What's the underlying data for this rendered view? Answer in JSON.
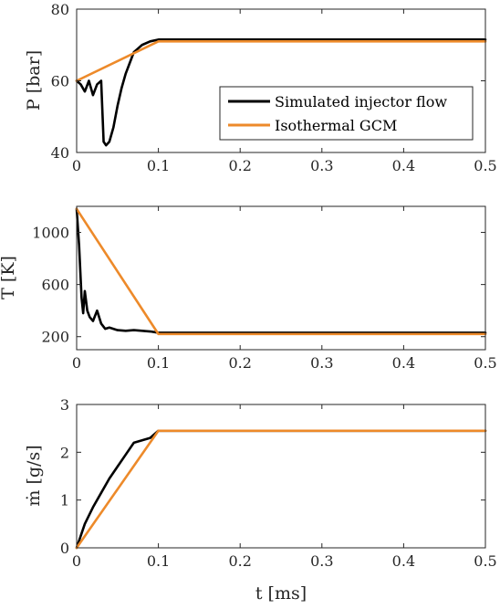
{
  "chart_data": [
    {
      "type": "line",
      "ylabel": "P [bar]",
      "xlim": [
        0,
        0.5
      ],
      "ylim": [
        40,
        80
      ],
      "xticks": [
        "0",
        "0.1",
        "0.2",
        "0.3",
        "0.4",
        "0.5"
      ],
      "yticks": [
        "40",
        "60",
        "80"
      ],
      "legend": {
        "placement": "right-middle",
        "entries": [
          "Simulated injector flow",
          "Isothermal GCM"
        ]
      },
      "series": [
        {
          "name": "Simulated injector flow",
          "color": "#000000",
          "x": [
            0,
            0.005,
            0.01,
            0.015,
            0.02,
            0.025,
            0.03,
            0.033,
            0.036,
            0.04,
            0.045,
            0.05,
            0.055,
            0.06,
            0.065,
            0.07,
            0.075,
            0.08,
            0.09,
            0.1,
            0.2,
            0.3,
            0.4,
            0.5
          ],
          "y": [
            60,
            59,
            57,
            60,
            56,
            59,
            60,
            43,
            42,
            43,
            47,
            53,
            58,
            62,
            65,
            68,
            69,
            70,
            71,
            71.5,
            71.5,
            71.5,
            71.5,
            71.5
          ]
        },
        {
          "name": "Isothermal GCM",
          "color": "#ed8a2a",
          "x": [
            0,
            0.1,
            0.5
          ],
          "y": [
            60,
            71,
            71
          ]
        }
      ]
    },
    {
      "type": "line",
      "ylabel": "T [K]",
      "xlim": [
        0,
        0.5
      ],
      "ylim": [
        100,
        1200
      ],
      "xticks": [
        "0",
        "0.1",
        "0.2",
        "0.3",
        "0.4",
        "0.5"
      ],
      "yticks": [
        "200",
        "600",
        "1000"
      ],
      "series": [
        {
          "name": "Simulated injector flow",
          "color": "#000000",
          "x": [
            0,
            0.003,
            0.006,
            0.008,
            0.01,
            0.013,
            0.016,
            0.02,
            0.025,
            0.03,
            0.035,
            0.04,
            0.05,
            0.06,
            0.07,
            0.08,
            0.09,
            0.1,
            0.2,
            0.3,
            0.4,
            0.5
          ],
          "y": [
            1180,
            900,
            500,
            380,
            550,
            400,
            350,
            320,
            400,
            300,
            260,
            270,
            250,
            245,
            250,
            245,
            240,
            230,
            230,
            230,
            230,
            230
          ]
        },
        {
          "name": "Isothermal GCM",
          "color": "#ed8a2a",
          "x": [
            0,
            0.1,
            0.5
          ],
          "y": [
            1180,
            220,
            220
          ]
        }
      ]
    },
    {
      "type": "line",
      "xlabel": "t [ms]",
      "ylabel": "ṁ [g/s]",
      "xlim": [
        0,
        0.5
      ],
      "ylim": [
        0,
        3
      ],
      "xticks": [
        "0",
        "0.1",
        "0.2",
        "0.3",
        "0.4",
        "0.5"
      ],
      "yticks": [
        "0",
        "1",
        "2",
        "3"
      ],
      "series": [
        {
          "name": "Simulated injector flow",
          "color": "#000000",
          "x": [
            0,
            0.005,
            0.01,
            0.02,
            0.03,
            0.04,
            0.05,
            0.06,
            0.07,
            0.08,
            0.09,
            0.1,
            0.2,
            0.3,
            0.4,
            0.5
          ],
          "y": [
            0,
            0.25,
            0.5,
            0.85,
            1.15,
            1.45,
            1.7,
            1.95,
            2.2,
            2.25,
            2.3,
            2.45,
            2.45,
            2.45,
            2.45,
            2.45
          ]
        },
        {
          "name": "Isothermal GCM",
          "color": "#ed8a2a",
          "x": [
            0,
            0.1,
            0.5
          ],
          "y": [
            0,
            2.45,
            2.45
          ]
        }
      ]
    }
  ]
}
